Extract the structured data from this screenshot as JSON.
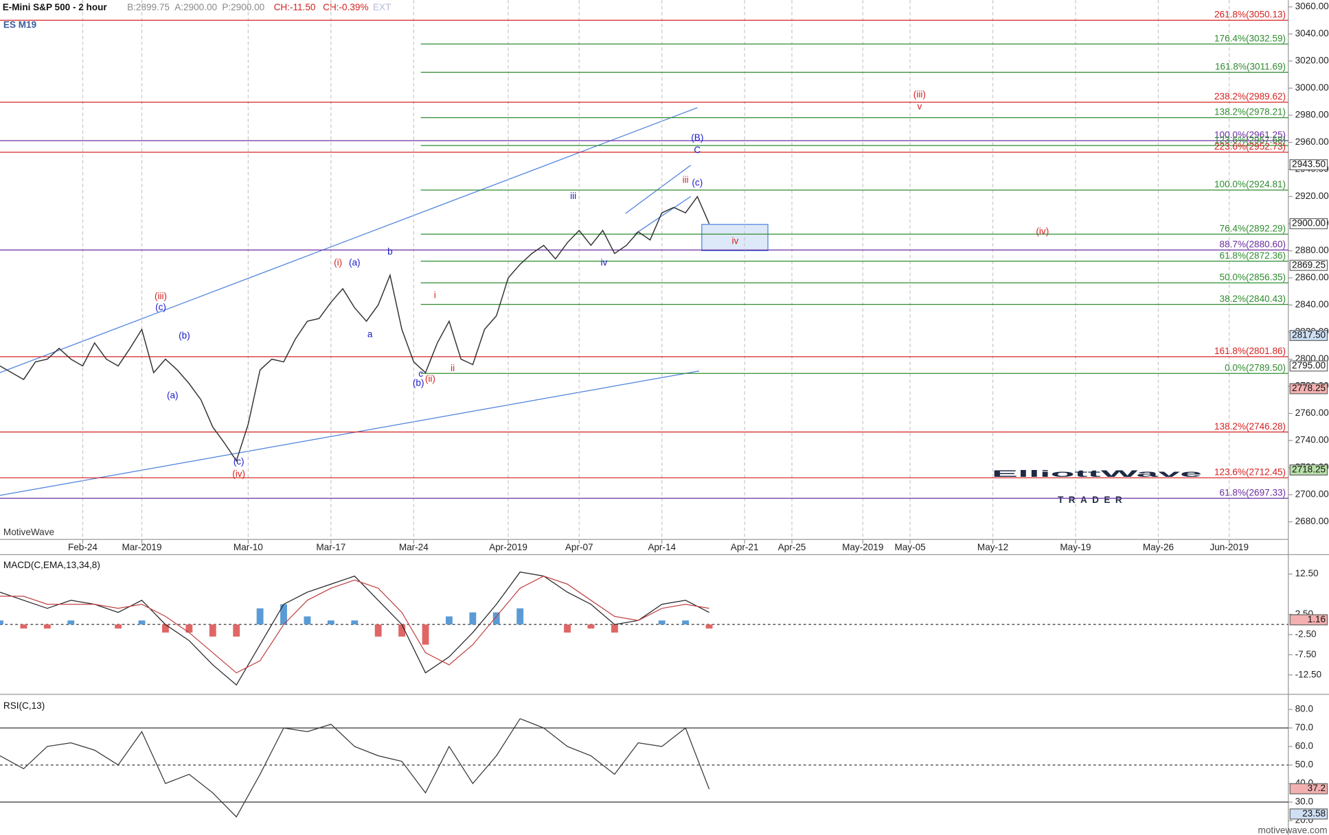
{
  "chart_data": [
    {
      "type": "line",
      "title": "E-Mini S&P 500 - 2 hour",
      "symbol": "ES M19",
      "watermark": "MotiveWave",
      "quote": [
        {
          "text": "B:2899.75",
          "color": "#888888"
        },
        {
          "text": "A:2900.00",
          "color": "#888888"
        },
        {
          "text": "P:2900.00",
          "color": "#888888"
        },
        {
          "text": "CH:-11.50",
          "color": "#d62020"
        },
        {
          "text": "CH:-0.39%",
          "color": "#d62020"
        },
        {
          "text": "EXT",
          "color": "#b8b8d8"
        }
      ],
      "x": [
        -7,
        -6,
        -5,
        -4,
        -3,
        -2,
        -1,
        0,
        1,
        2,
        3,
        4,
        5,
        6,
        7,
        8,
        9,
        10,
        11,
        12,
        13,
        14,
        15,
        16,
        17,
        18,
        19,
        20,
        21,
        22,
        23,
        24,
        25,
        26,
        27,
        28,
        29,
        30,
        31,
        32,
        33,
        34,
        35,
        36,
        37,
        38,
        39,
        40,
        41,
        42,
        43,
        44,
        45,
        46,
        47,
        48,
        49,
        50,
        51,
        52,
        53
      ],
      "values": [
        2795,
        2790,
        2785,
        2798,
        2800,
        2808,
        2800,
        2795,
        2812,
        2800,
        2795,
        2808,
        2822,
        2790,
        2800,
        2792,
        2782,
        2770,
        2750,
        2738,
        2725,
        2752,
        2792,
        2800,
        2798,
        2815,
        2828,
        2830,
        2842,
        2852,
        2838,
        2828,
        2840,
        2862,
        2822,
        2798,
        2790,
        2812,
        2828,
        2800,
        2796,
        2822,
        2832,
        2860,
        2870,
        2878,
        2884,
        2874,
        2886,
        2895,
        2884,
        2895,
        2878,
        2884,
        2894,
        2888,
        2908,
        2912,
        2908,
        2920,
        2900
      ],
      "color": "#333333",
      "xlim": [
        -7,
        102
      ],
      "xticks": [
        {
          "value": 0,
          "label": "Feb-24"
        },
        {
          "value": 5,
          "label": "Mar-2019"
        },
        {
          "value": 14,
          "label": "Mar-10"
        },
        {
          "value": 21,
          "label": "Mar-17"
        },
        {
          "value": 28,
          "label": "Mar-24"
        },
        {
          "value": 36,
          "label": "Apr-2019"
        },
        {
          "value": 42,
          "label": "Apr-07"
        },
        {
          "value": 49,
          "label": "Apr-14"
        },
        {
          "value": 56,
          "label": "Apr-21"
        },
        {
          "value": 60,
          "label": "Apr-25"
        },
        {
          "value": 66,
          "label": "May-2019"
        },
        {
          "value": 70,
          "label": "May-05"
        },
        {
          "value": 77,
          "label": "May-12"
        },
        {
          "value": 84,
          "label": "May-19"
        },
        {
          "value": 91,
          "label": "May-26"
        },
        {
          "value": 97,
          "label": "Jun-2019"
        }
      ],
      "ylim": [
        2667,
        3065
      ],
      "yticks": [
        {
          "value": 3060,
          "label": "3060.00"
        },
        {
          "value": 3040,
          "label": "3040.00"
        },
        {
          "value": 3020,
          "label": "3020.00"
        },
        {
          "value": 3000,
          "label": "3000.00"
        },
        {
          "value": 2980,
          "label": "2980.00"
        },
        {
          "value": 2960,
          "label": "2960.00"
        },
        {
          "value": 2940,
          "label": "2940.00"
        },
        {
          "value": 2920,
          "label": "2920.00"
        },
        {
          "value": 2900,
          "label": "2900.00"
        },
        {
          "value": 2880,
          "label": "2880.00"
        },
        {
          "value": 2860,
          "label": "2860.00"
        },
        {
          "value": 2840,
          "label": "2840.00"
        },
        {
          "value": 2820,
          "label": "2820.00"
        },
        {
          "value": 2800,
          "label": "2800.00"
        },
        {
          "value": 2780,
          "label": "2780.00"
        },
        {
          "value": 2760,
          "label": "2760.00"
        },
        {
          "value": 2740,
          "label": "2740.00"
        },
        {
          "value": 2720,
          "label": "2720.00"
        },
        {
          "value": 2700,
          "label": "2700.00"
        },
        {
          "value": 2680,
          "label": "2680.00"
        }
      ],
      "grid": true,
      "levels": [
        {
          "value": 3050.13,
          "label": "261.8%(3050.13)",
          "color": "#d62020"
        },
        {
          "value": 3032.59,
          "label": "176.4%(3032.59)",
          "color": "#2e8b2e",
          "x_from": 28.6
        },
        {
          "value": 3011.69,
          "label": "161.8%(3011.69)",
          "color": "#2e8b2e",
          "x_from": 28.6
        },
        {
          "value": 2989.62,
          "label": "238.2%(2989.62)",
          "color": "#d62020"
        },
        {
          "value": 2978.21,
          "label": "138.2%(2978.21)",
          "color": "#2e8b2e",
          "x_from": 28.6
        },
        {
          "value": 2961.25,
          "label": "100.0%(2961.25)",
          "color": "#6a2ca0"
        },
        {
          "value": 2957.68,
          "label": "123.6%(2957.68)",
          "color": "#2e8b2e",
          "x_from": 28.6
        },
        {
          "value": 2952.73,
          "label": "223.6%(2952.73)",
          "color": "#d62020"
        },
        {
          "value": 2924.81,
          "label": "100.0%(2924.81)",
          "color": "#2e8b2e",
          "x_from": 28.6
        },
        {
          "value": 2892.29,
          "label": "76.4%(2892.29)",
          "color": "#2e8b2e",
          "x_from": 28.6
        },
        {
          "value": 2880.6,
          "label": "88.7%(2880.60)",
          "color": "#6a2ca0"
        },
        {
          "value": 2872.36,
          "label": "61.8%(2872.36)",
          "color": "#2e8b2e",
          "x_from": 28.6
        },
        {
          "value": 2856.35,
          "label": "50.0%(2856.35)",
          "color": "#2e8b2e",
          "x_from": 28.6
        },
        {
          "value": 2840.43,
          "label": "38.2%(2840.43)",
          "color": "#2e8b2e",
          "x_from": 28.6
        },
        {
          "value": 2801.86,
          "label": "161.8%(2801.86)",
          "color": "#d62020"
        },
        {
          "value": 2789.5,
          "label": "0.0%(2789.50)",
          "color": "#2e8b2e",
          "x_from": 28.6
        },
        {
          "value": 2746.28,
          "label": "138.2%(2746.28)",
          "color": "#d62020"
        },
        {
          "value": 2712.45,
          "label": "123.6%(2712.45)",
          "color": "#d62020"
        },
        {
          "value": 2697.33,
          "label": "61.8%(2697.33)",
          "color": "#6a2ca0"
        }
      ],
      "price_tags": [
        {
          "value": 2943.5,
          "label": "2943.50",
          "color": "#ffffff"
        },
        {
          "value": 2900,
          "label": "2900.00",
          "color": "#ffffff"
        },
        {
          "value": 2869.25,
          "label": "2869.25",
          "color": "#ffffff"
        },
        {
          "value": 2817.5,
          "label": "2817.50",
          "color": "#cfe0f5"
        },
        {
          "value": 2795,
          "label": "2795.00",
          "color": "#ffffff"
        },
        {
          "value": 2778.25,
          "label": "2778.25",
          "color": "#f2b0b0"
        },
        {
          "value": 2718.25,
          "label": "2718.25",
          "color": "#b8e0a8"
        }
      ],
      "annotations": [
        {
          "text": "(iii)",
          "x": 70.8,
          "y": 2995,
          "color": "#d62020"
        },
        {
          "text": "v",
          "x": 70.8,
          "y": 2986,
          "color": "#d62020"
        },
        {
          "text": "(iv)",
          "x": 81.2,
          "y": 2894,
          "color": "#d62020"
        },
        {
          "text": "(B)",
          "x": 52,
          "y": 2963,
          "color": "#1a1acc"
        },
        {
          "text": "C",
          "x": 52,
          "y": 2954,
          "color": "#1a1acc"
        },
        {
          "text": "(c)",
          "x": 52,
          "y": 2930,
          "color": "#1a1acc"
        },
        {
          "text": "iii",
          "x": 51,
          "y": 2932,
          "color": "#d62020"
        },
        {
          "text": "iv",
          "x": 55.2,
          "y": 2887,
          "color": "#d62020"
        },
        {
          "text": "(i)",
          "x": 21.6,
          "y": 2871,
          "color": "#d62020"
        },
        {
          "text": "(a)",
          "x": 23,
          "y": 2871,
          "color": "#1a1acc"
        },
        {
          "text": "b",
          "x": 26,
          "y": 2879,
          "color": "#1a1acc"
        },
        {
          "text": "a",
          "x": 24.3,
          "y": 2818,
          "color": "#1a1acc"
        },
        {
          "text": "(iii)",
          "x": 6.6,
          "y": 2846,
          "color": "#d62020"
        },
        {
          "text": "(c)",
          "x": 6.6,
          "y": 2838,
          "color": "#1a1acc"
        },
        {
          "text": "(b)",
          "x": 8.6,
          "y": 2817,
          "color": "#1a1acc"
        },
        {
          "text": "(a)",
          "x": 7.6,
          "y": 2773,
          "color": "#1a1acc"
        },
        {
          "text": "(c)",
          "x": 13.2,
          "y": 2724,
          "color": "#1a1acc"
        },
        {
          "text": "(iv)",
          "x": 13.2,
          "y": 2715,
          "color": "#d62020"
        },
        {
          "text": "c",
          "x": 28.6,
          "y": 2789,
          "color": "#1a1acc"
        },
        {
          "text": "(b)",
          "x": 28.4,
          "y": 2782,
          "color": "#1a1acc"
        },
        {
          "text": "(ii)",
          "x": 29.4,
          "y": 2785,
          "color": "#d62020"
        },
        {
          "text": "i",
          "x": 29.8,
          "y": 2847,
          "color": "#d62020"
        },
        {
          "text": "ii",
          "x": 31.3,
          "y": 2793,
          "color": "#d62020"
        },
        {
          "text": "iii",
          "x": 41.5,
          "y": 2920,
          "color": "#1a1acc"
        },
        {
          "text": "iv",
          "x": 44.1,
          "y": 2871,
          "color": "#1a1acc"
        }
      ]
    },
    {
      "type": "macd",
      "title": "MACD(C,EMA,13,34,8)",
      "x": [
        -7,
        -5,
        -3,
        -1,
        1,
        3,
        5,
        7,
        9,
        11,
        13,
        15,
        17,
        19,
        21,
        23,
        25,
        27,
        29,
        31,
        33,
        35,
        37,
        39,
        41,
        43,
        45,
        47,
        49,
        51,
        53
      ],
      "series": [
        {
          "color": "#222222",
          "values": [
            8,
            6,
            4,
            6,
            5,
            3,
            6,
            0,
            -4,
            -10,
            -15,
            -5,
            5,
            8,
            10,
            12,
            6,
            0,
            -12,
            -8,
            -2,
            5,
            13,
            12,
            8,
            5,
            0,
            1,
            5,
            6,
            3
          ]
        },
        {
          "color": "#c04040",
          "values": [
            7,
            7,
            5,
            5,
            5,
            4,
            5,
            2,
            -2,
            -7,
            -12,
            -9,
            0,
            6,
            9,
            11,
            9,
            3,
            -7,
            -10,
            -5,
            2,
            9,
            12,
            10,
            6,
            2,
            1,
            4,
            5,
            4
          ]
        }
      ],
      "histogram": [
        1,
        -1,
        -1,
        1,
        0,
        -1,
        1,
        -2,
        -2,
        -3,
        -3,
        4,
        5,
        2,
        1,
        1,
        -3,
        -3,
        -5,
        2,
        3,
        3,
        4,
        0,
        -2,
        -1,
        -2,
        0,
        1,
        1,
        -1
      ],
      "histogram_colors": [
        "#5b9bd5",
        "#e06666"
      ],
      "ylim": [
        -16.9,
        17.3
      ],
      "yticks": [
        {
          "value": 12.5,
          "label": "12.50"
        },
        {
          "value": 2.5,
          "label": "2.50"
        },
        {
          "value": -2.5,
          "label": "-2.50"
        },
        {
          "value": -7.5,
          "label": "-7.50"
        },
        {
          "value": -12.5,
          "label": "-12.50"
        }
      ],
      "price_tags": [
        {
          "value": 1.16,
          "label": "1.16",
          "color": "#f2b0b0"
        }
      ]
    },
    {
      "type": "rsi",
      "title": "RSI(C,13)",
      "x": [
        -7,
        -5,
        -3,
        -1,
        1,
        3,
        5,
        7,
        9,
        11,
        13,
        15,
        17,
        19,
        21,
        23,
        25,
        27,
        29,
        31,
        33,
        35,
        37,
        39,
        41,
        43,
        45,
        47,
        49,
        51,
        53
      ],
      "values": [
        55,
        48,
        60,
        62,
        58,
        50,
        68,
        40,
        45,
        35,
        22,
        45,
        70,
        68,
        72,
        60,
        55,
        52,
        35,
        60,
        40,
        55,
        75,
        70,
        60,
        55,
        45,
        62,
        60,
        70,
        37
      ],
      "color": "#333333",
      "levels": [
        70,
        50,
        30
      ],
      "ylim": [
        13.2,
        87.2
      ],
      "yticks": [
        {
          "value": 80,
          "label": "80.0"
        },
        {
          "value": 70,
          "label": "70.0"
        },
        {
          "value": 60,
          "label": "60.0"
        },
        {
          "value": 50,
          "label": "50.0"
        },
        {
          "value": 40,
          "label": "40.0"
        },
        {
          "value": 30,
          "label": "30.0"
        },
        {
          "value": 20,
          "label": "20.0"
        }
      ],
      "price_tags": [
        {
          "value": 37.2,
          "label": "37.2",
          "color": "#f2b0b0"
        },
        {
          "value": 23.58,
          "label": "23.58",
          "color": "#cfe0f5"
        }
      ]
    }
  ],
  "logo": {
    "brand": "ElliottWave",
    "sub": "TRADER"
  },
  "footer": "motivewave.com"
}
